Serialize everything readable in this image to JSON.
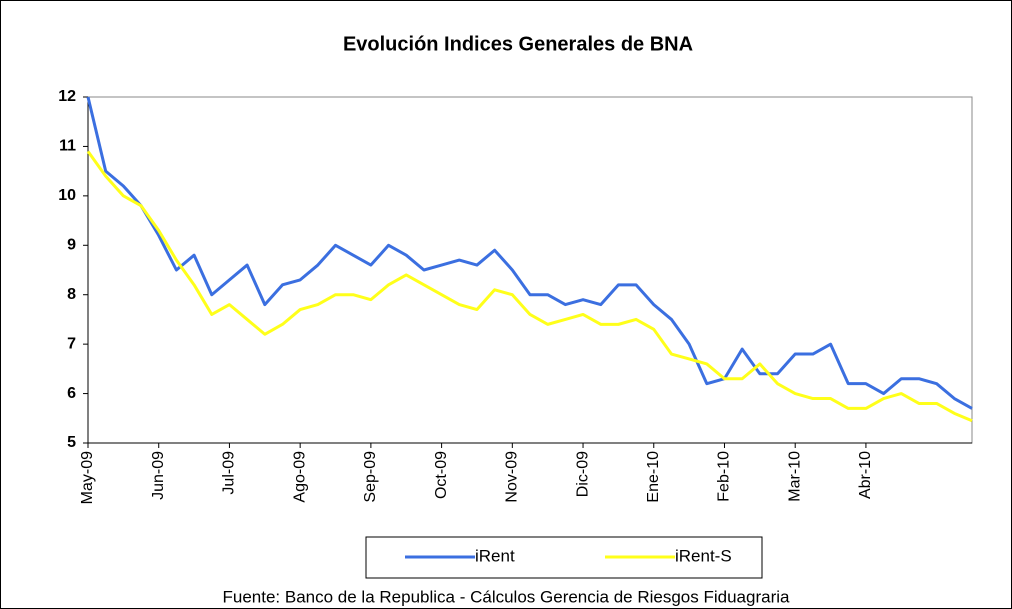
{
  "chart_data": {
    "type": "line",
    "title": "Evolución Indices Generales de BNA",
    "footer": "Fuente: Banco de la Republica - Cálculos Gerencia de Riesgos Fiduagraria",
    "categories": [
      "May-09",
      null,
      null,
      null,
      "Jun-09",
      null,
      null,
      null,
      "Jul-09",
      null,
      null,
      null,
      "Ago-09",
      null,
      null,
      null,
      "Sep-09",
      null,
      null,
      null,
      "Oct-09",
      null,
      null,
      null,
      "Nov-09",
      null,
      null,
      null,
      "Dic-09",
      null,
      null,
      null,
      "Ene-10",
      null,
      null,
      null,
      "Feb-10",
      null,
      null,
      null,
      "Mar-10",
      null,
      null,
      null,
      "Abr-10",
      null,
      null,
      null,
      null,
      null,
      null
    ],
    "series": [
      {
        "name": "iRent",
        "color": "#3b6fe0",
        "values": [
          12.0,
          10.5,
          10.2,
          9.8,
          9.2,
          8.5,
          8.8,
          8.0,
          8.3,
          8.6,
          7.8,
          8.2,
          8.3,
          8.6,
          9.0,
          8.8,
          8.6,
          9.0,
          8.8,
          8.5,
          8.6,
          8.7,
          8.6,
          8.9,
          8.5,
          8.0,
          8.0,
          7.8,
          7.9,
          7.8,
          8.2,
          8.2,
          7.8,
          7.5,
          7.0,
          6.2,
          6.3,
          6.9,
          6.4,
          6.4,
          6.8,
          6.8,
          7.0,
          6.2,
          6.2,
          6.0,
          6.3,
          6.3,
          6.2,
          5.9,
          5.7
        ]
      },
      {
        "name": "iRent-S",
        "color": "#ffff1a",
        "values": [
          10.9,
          10.4,
          10.0,
          9.8,
          9.3,
          8.7,
          8.2,
          7.6,
          7.8,
          7.5,
          7.2,
          7.4,
          7.7,
          7.8,
          8.0,
          8.0,
          7.9,
          8.2,
          8.4,
          8.2,
          8.0,
          7.8,
          7.7,
          8.1,
          8.0,
          7.6,
          7.4,
          7.5,
          7.6,
          7.4,
          7.4,
          7.5,
          7.3,
          6.8,
          6.7,
          6.6,
          6.3,
          6.3,
          6.6,
          6.2,
          6.0,
          5.9,
          5.9,
          5.7,
          5.7,
          5.9,
          6.0,
          5.8,
          5.8,
          5.6,
          5.45
        ]
      }
    ],
    "ylim": [
      5,
      12
    ],
    "yticks": [
      5,
      6,
      7,
      8,
      9,
      10,
      11,
      12
    ],
    "grid": false
  }
}
